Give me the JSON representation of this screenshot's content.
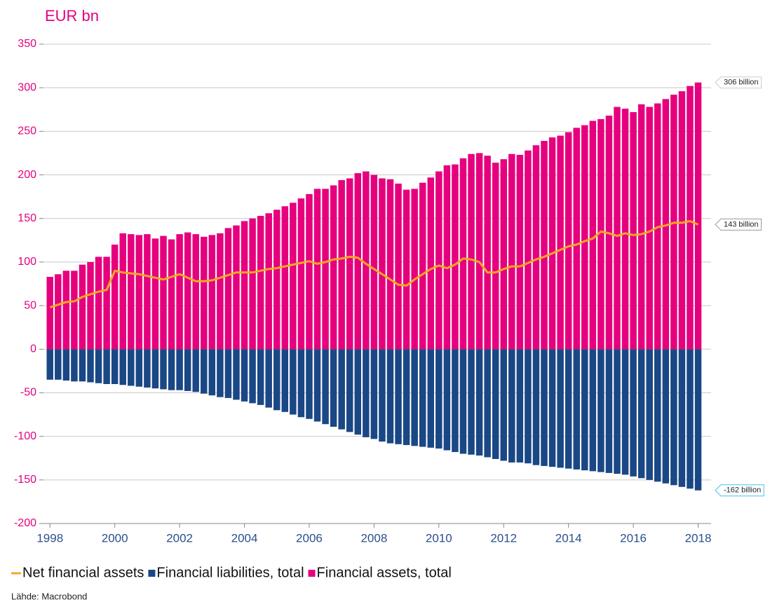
{
  "chart_data": {
    "type": "bar",
    "unit_label": "EUR bn",
    "source": "Lähde: Macrobond",
    "legend": "bottom-left",
    "grid": true,
    "xlim": [
      1997.8,
      2018.4
    ],
    "xticks": [
      1998,
      2000,
      2002,
      2004,
      2006,
      2008,
      2010,
      2012,
      2014,
      2016,
      2018
    ],
    "ylim": [
      -200,
      350
    ],
    "yticks": [
      -200,
      -150,
      -100,
      -50,
      0,
      50,
      100,
      150,
      200,
      250,
      300,
      350
    ],
    "x": [
      1998,
      1998.25,
      1998.5,
      1998.75,
      1999,
      1999.25,
      1999.5,
      1999.75,
      2000,
      2000.25,
      2000.5,
      2000.75,
      2001,
      2001.25,
      2001.5,
      2001.75,
      2002,
      2002.25,
      2002.5,
      2002.75,
      2003,
      2003.25,
      2003.5,
      2003.75,
      2004,
      2004.25,
      2004.5,
      2004.75,
      2005,
      2005.25,
      2005.5,
      2005.75,
      2006,
      2006.25,
      2006.5,
      2006.75,
      2007,
      2007.25,
      2007.5,
      2007.75,
      2008,
      2008.25,
      2008.5,
      2008.75,
      2009,
      2009.25,
      2009.5,
      2009.75,
      2010,
      2010.25,
      2010.5,
      2010.75,
      2011,
      2011.25,
      2011.5,
      2011.75,
      2012,
      2012.25,
      2012.5,
      2012.75,
      2013,
      2013.25,
      2013.5,
      2013.75,
      2014,
      2014.25,
      2014.5,
      2014.75,
      2015,
      2015.25,
      2015.5,
      2015.75,
      2016,
      2016.25,
      2016.5,
      2016.75,
      2017,
      2017.25,
      2017.5,
      2017.75,
      2018
    ],
    "series": [
      {
        "name": "Net financial assets",
        "color": "#f7a823",
        "kind": "line",
        "end_label": "143 billion",
        "end_label_border": "#999999",
        "values": [
          48,
          51,
          54,
          55,
          60,
          63,
          66,
          68,
          90,
          88,
          87,
          86,
          84,
          82,
          80,
          83,
          86,
          82,
          78,
          78,
          79,
          82,
          85,
          88,
          88,
          88,
          90,
          92,
          93,
          95,
          97,
          99,
          101,
          98,
          100,
          103,
          104,
          106,
          105,
          98,
          92,
          86,
          80,
          74,
          73,
          80,
          86,
          92,
          96,
          93,
          97,
          104,
          103,
          100,
          88,
          88,
          92,
          95,
          95,
          99,
          103,
          106,
          110,
          114,
          118,
          120,
          124,
          127,
          135,
          133,
          130,
          133,
          131,
          132,
          135,
          140,
          142,
          145,
          145,
          147,
          143
        ]
      },
      {
        "name": "Financial liabilities, total",
        "color": "#1a4785",
        "kind": "bar",
        "end_label": "-162 billion",
        "end_label_border": "#3fc4e8",
        "values": [
          -35,
          -35,
          -36,
          -37,
          -37,
          -38,
          -39,
          -40,
          -40,
          -41,
          -42,
          -43,
          -44,
          -45,
          -46,
          -47,
          -47,
          -48,
          -49,
          -51,
          -53,
          -55,
          -56,
          -58,
          -60,
          -62,
          -64,
          -67,
          -70,
          -72,
          -75,
          -78,
          -80,
          -83,
          -86,
          -89,
          -92,
          -95,
          -98,
          -101,
          -103,
          -106,
          -108,
          -109,
          -110,
          -111,
          -112,
          -113,
          -114,
          -116,
          -118,
          -120,
          -121,
          -122,
          -124,
          -126,
          -128,
          -130,
          -130,
          -131,
          -133,
          -134,
          -135,
          -136,
          -137,
          -138,
          -139,
          -140,
          -141,
          -142,
          -143,
          -144,
          -146,
          -148,
          -150,
          -152,
          -154,
          -156,
          -158,
          -160,
          -162
        ]
      },
      {
        "name": "Financial assets, total",
        "color": "#e6007e",
        "kind": "bar",
        "end_label": "306 billion",
        "end_label_border": "#cccccc",
        "values": [
          83,
          86,
          90,
          90,
          97,
          100,
          106,
          106,
          120,
          133,
          132,
          131,
          132,
          127,
          130,
          126,
          132,
          134,
          132,
          129,
          131,
          133,
          139,
          142,
          147,
          150,
          153,
          156,
          160,
          164,
          168,
          173,
          178,
          184,
          184,
          188,
          194,
          196,
          202,
          204,
          200,
          196,
          195,
          190,
          183,
          184,
          191,
          197,
          204,
          211,
          212,
          219,
          224,
          225,
          222,
          214,
          218,
          224,
          223,
          228,
          234,
          239,
          243,
          245,
          249,
          254,
          257,
          262,
          264,
          268,
          278,
          276,
          272,
          281,
          278,
          282,
          287,
          292,
          296,
          302,
          306
        ]
      }
    ]
  }
}
